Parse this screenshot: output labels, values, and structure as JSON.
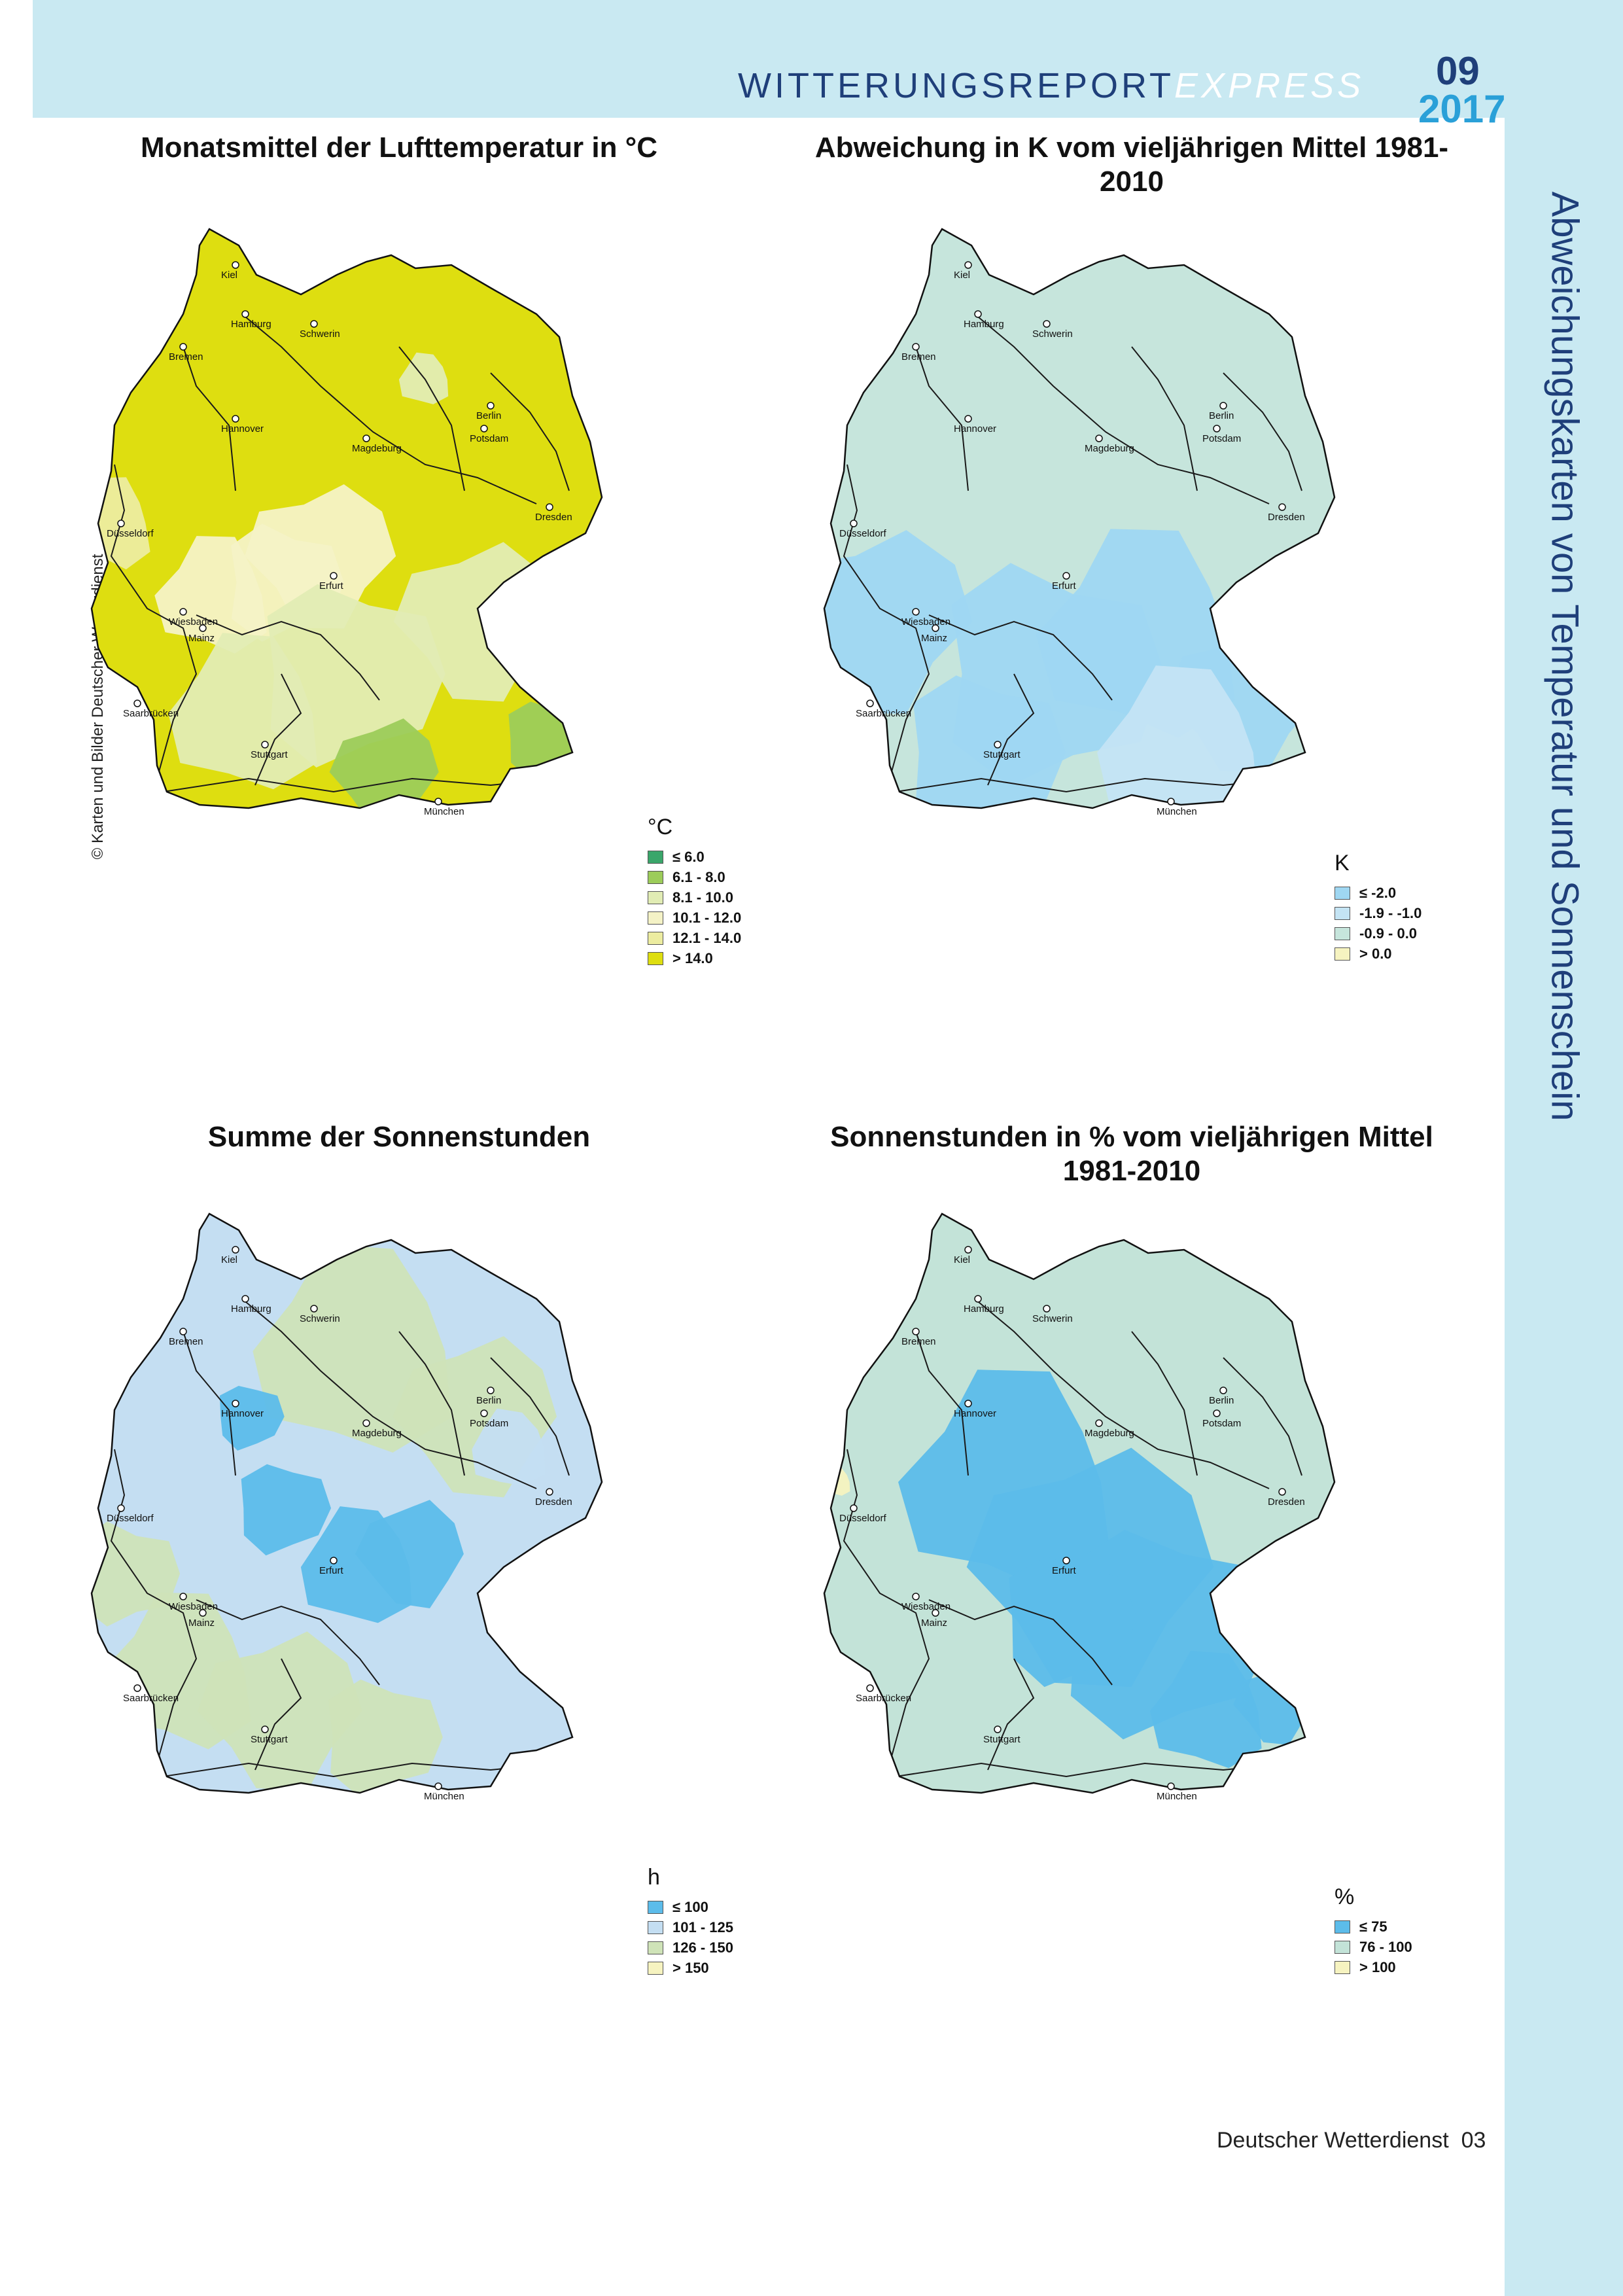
{
  "header": {
    "brand_main": "WITTERUNGSREPORT",
    "brand_express": "EXPRESS",
    "issue_month": "09",
    "issue_year": "2017"
  },
  "sidebar_title": "Abweichungskarten von Temperatur und Sonnenschein",
  "credit": "© Karten und Bilder Deutscher Wetterdienst",
  "cities": [
    "Kiel",
    "Hamburg",
    "Schwerin",
    "Bremen",
    "Berlin",
    "Potsdam",
    "Hannover",
    "Magdeburg",
    "Düsseldorf",
    "Erfurt",
    "Dresden",
    "Wiesbaden",
    "Mainz",
    "Saarbrücken",
    "Stuttgart",
    "München"
  ],
  "maps": [
    {
      "title": "Monatsmittel der Lufttemperatur in °C",
      "base_color": "#dede10",
      "legend": {
        "unit": "°C",
        "items": [
          {
            "label": "≤ 6.0",
            "color": "#3aa66a"
          },
          {
            "label": "6.1 - 8.0",
            "color": "#9ccc5a"
          },
          {
            "label": "8.1 - 10.0",
            "color": "#e1ecb4"
          },
          {
            "label": "10.1 - 12.0",
            "color": "#f4f2c6"
          },
          {
            "label": "12.1 - 14.0",
            "color": "#ececa0"
          },
          {
            "label": "> 14.0",
            "color": "#dede10"
          }
        ]
      }
    },
    {
      "title": "Abweichung in K vom vieljährigen Mittel 1981-2010",
      "base_color": "#c6e5dc",
      "legend": {
        "unit": "K",
        "items": [
          {
            "label": "≤ -2.0",
            "color": "#9fd7f2"
          },
          {
            "label": "-1.9 - -1.0",
            "color": "#c4e4f4"
          },
          {
            "label": "-0.9 - 0.0",
            "color": "#c6e5dc"
          },
          {
            "label": "> 0.0",
            "color": "#f6f3c0"
          }
        ]
      }
    },
    {
      "title": "Summe der Sonnenstunden",
      "base_color": "#c4def2",
      "legend": {
        "unit": "h",
        "items": [
          {
            "label": "≤ 100",
            "color": "#5cbcea"
          },
          {
            "label": "101 - 125",
            "color": "#c4def2"
          },
          {
            "label": "126 - 150",
            "color": "#cfe3b8"
          },
          {
            "label": "> 150",
            "color": "#f6f3c0"
          }
        ]
      }
    },
    {
      "title": "Sonnenstunden in % vom vieljährigen Mittel 1981-2010",
      "base_color": "#c3e3d8",
      "legend": {
        "unit": "%",
        "items": [
          {
            "label": "≤ 75",
            "color": "#5cbcea"
          },
          {
            "label": "76 - 100",
            "color": "#c3e3d8"
          },
          {
            "label": "> 100",
            "color": "#f6f3c0"
          }
        ]
      }
    }
  ],
  "footer": {
    "publisher": "Deutscher Wetterdienst",
    "page": "03"
  }
}
